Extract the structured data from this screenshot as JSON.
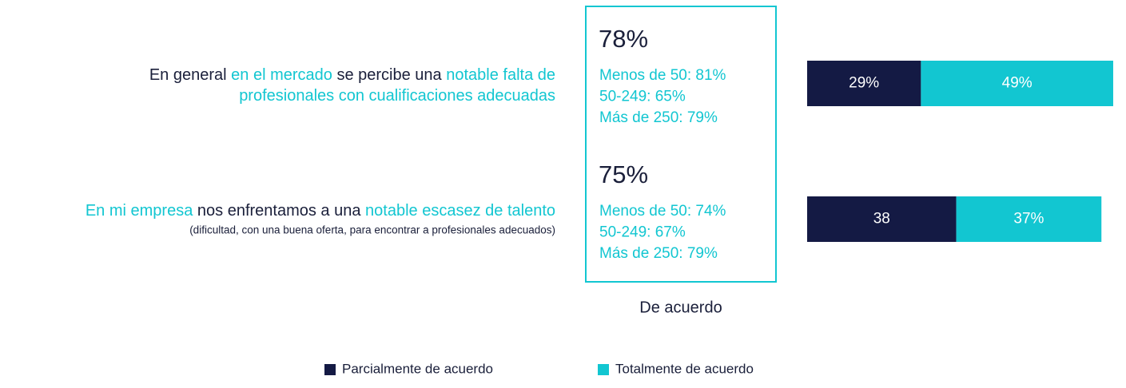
{
  "chart_data": {
    "type": "bar",
    "stacked": true,
    "categories": [
      {
        "lines": [
          [
            {
              "text": "En general ",
              "color": "#1a1f3a"
            },
            {
              "text": "en el mercado",
              "color": "#12c6d1"
            },
            {
              "text": " se percibe una ",
              "color": "#1a1f3a"
            },
            {
              "text": "notable falta de",
              "color": "#12c6d1"
            }
          ],
          [
            {
              "text": "profesionales con cualificaciones adecuadas",
              "color": "#12c6d1"
            }
          ]
        ]
      },
      {
        "lines": [
          [
            {
              "text": "En mi empresa",
              "color": "#12c6d1"
            },
            {
              "text": " nos enfrentamos a una ",
              "color": "#1a1f3a"
            },
            {
              "text": "notable escasez de talento",
              "color": "#12c6d1"
            }
          ]
        ],
        "note": "(dificultad, con una buena oferta, para encontrar a profesionales adecuados)"
      }
    ],
    "summary": {
      "caption": "De acuerdo",
      "rows": [
        {
          "total": "78%",
          "breakdown": [
            "Menos de 50: 81%",
            "50-249: 65%",
            "Más de 250: 79%"
          ]
        },
        {
          "total": "75%",
          "breakdown": [
            "Menos de 50: 74%",
            "50-249: 67%",
            "Más de 250: 79%"
          ]
        }
      ]
    },
    "series": [
      {
        "name": "Parcialmente de acuerdo",
        "color": "#141a44",
        "values": [
          29,
          38
        ],
        "value_labels": [
          "29%",
          "38"
        ]
      },
      {
        "name": "Totalmente de acuerdo",
        "color": "#12c6d1",
        "values": [
          49,
          37
        ],
        "value_labels": [
          "49%",
          "37%"
        ]
      }
    ]
  }
}
